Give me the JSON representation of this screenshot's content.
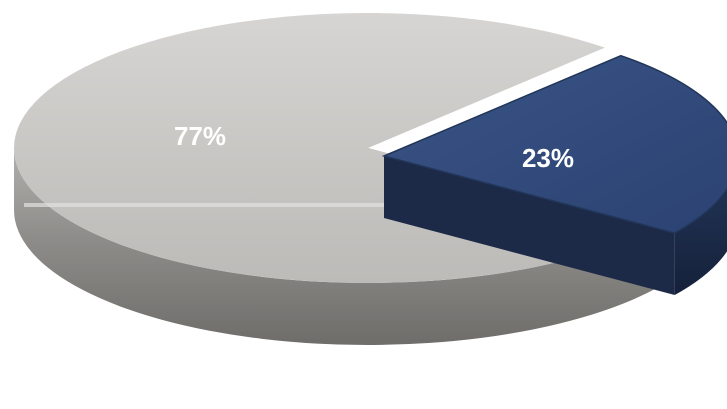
{
  "chart_data": {
    "type": "pie",
    "style": "3d-exploded",
    "title": "",
    "categories": [
      "",
      ""
    ],
    "values": [
      77,
      23
    ],
    "labels": [
      "77%",
      "23%"
    ],
    "colors": [
      "#c9c7c4",
      "#2f4a7a"
    ],
    "exploded": [
      false,
      true
    ],
    "legend": "none"
  }
}
